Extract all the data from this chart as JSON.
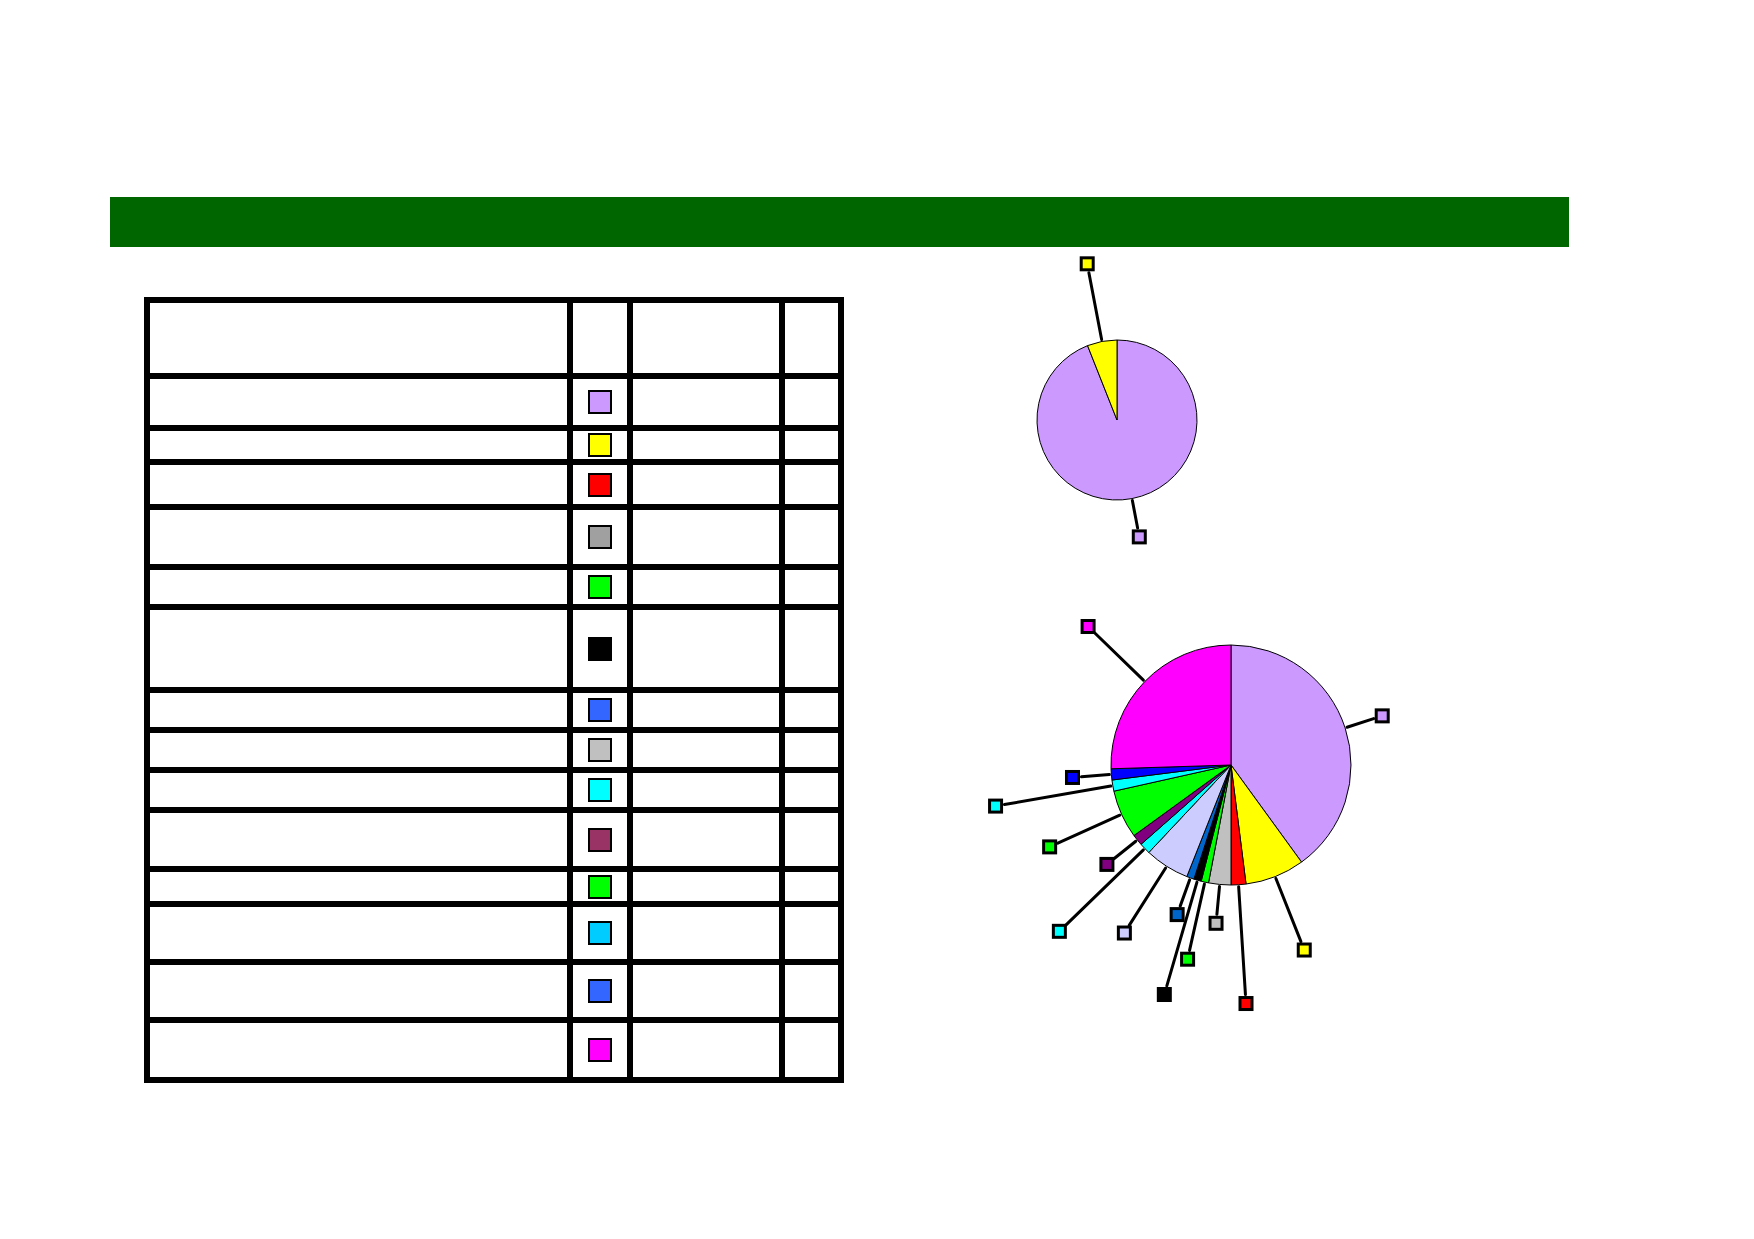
{
  "chart_data": [
    {
      "type": "pie",
      "categories": [
        null,
        null
      ],
      "values": [
        94,
        6
      ],
      "colors": [
        "#cc99ff",
        "#ffff00"
      ]
    },
    {
      "type": "pie",
      "categories": [
        null,
        null,
        null,
        null,
        null,
        null,
        null,
        null,
        null,
        null,
        null,
        null,
        null,
        null
      ],
      "values": [
        40,
        8,
        2,
        3,
        1,
        1,
        1,
        6,
        1.5,
        1.5,
        6.5,
        1.5,
        1.5,
        25.5
      ],
      "colors": [
        "#cc99ff",
        "#ffff00",
        "#ff0000",
        "#c0c0c0",
        "#00ff00",
        "#000000",
        "#0066cc",
        "#ccccff",
        "#00ffff",
        "#800080",
        "#00ff00",
        "#00ffff",
        "#0000ff",
        "#ff00ff"
      ]
    }
  ]
}
